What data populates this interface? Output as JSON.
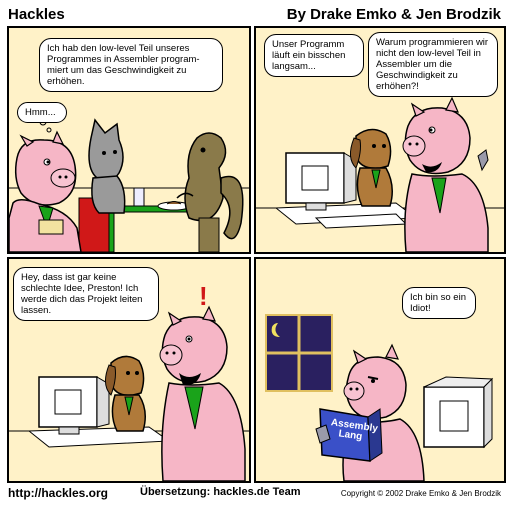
{
  "header": {
    "title": "Hackles",
    "authors": "By Drake Emko & Jen Brodzik"
  },
  "panels": [
    {
      "bubbles": [
        "Ich hab den low-level Teil unseres Programmes in Assembler program-miert um das Geschwindigkeit zu erhöhen.",
        "Hmm..."
      ]
    },
    {
      "bubbles": [
        "Unser Programm läuft ein bisschen langsam...",
        "Warum programmieren wir nicht den low-level Teil in Assembler um die Geschwindigkeit zu erhöhen?!"
      ]
    },
    {
      "bubbles": [
        "Hey, dass ist gar keine schlechte Idee, Preston! Ich werde dich das Projekt leiten lassen.",
        "!"
      ]
    },
    {
      "bubbles": [
        "Ich bin so ein Idiot!"
      ],
      "book_title": "Assembly Lang"
    }
  ],
  "footer": {
    "url": "http://hackles.org",
    "translation": "Übersetzung: hackles.de Team",
    "copyright": "Copyright © 2002 Drake Emko & Jen Brodzik"
  }
}
